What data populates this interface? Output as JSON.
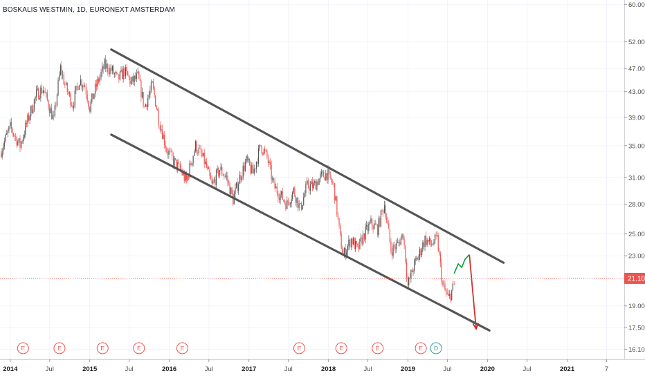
{
  "header": {
    "title": "BOSKALIS WESTMIN, 1D, EURONEXT AMSTERDAM"
  },
  "colors": {
    "up": "#26a69a",
    "down": "#ef5350",
    "candle": "#555555",
    "channel": "#555555",
    "projection_up": "#0a9c3a",
    "projection_down": "#d32f2f",
    "price_line": "#ef5350",
    "grid": "#f0f3fa"
  },
  "chart_data": {
    "type": "line",
    "title": "BOSKALIS WESTMIN, 1D, EURONEXT AMSTERDAM",
    "xlabel": "",
    "ylabel": "",
    "y_scale": "log",
    "ylim": [
      15.5,
      61.0
    ],
    "xlim": [
      "2013-11-15",
      "2021-09-20"
    ],
    "grid": true,
    "current_price": {
      "value": 21.1,
      "label": "21.10"
    },
    "y_ticks": [
      {
        "value": 60.0,
        "label": "60.00"
      },
      {
        "value": 52.0,
        "label": "52.00"
      },
      {
        "value": 47.0,
        "label": "47.00"
      },
      {
        "value": 43.0,
        "label": "43.00"
      },
      {
        "value": 39.0,
        "label": "39.00"
      },
      {
        "value": 35.0,
        "label": "35.00"
      },
      {
        "value": 31.0,
        "label": "31.00"
      },
      {
        "value": 28.0,
        "label": "28.00"
      },
      {
        "value": 25.0,
        "label": "25.00"
      },
      {
        "value": 23.0,
        "label": "23.00"
      },
      {
        "value": 19.0,
        "label": "19.00"
      },
      {
        "value": 17.5,
        "label": "17.50"
      },
      {
        "value": 16.1,
        "label": "16.10"
      }
    ],
    "x_ticks": [
      {
        "date": "2014-01-01",
        "label": "2014",
        "year": true
      },
      {
        "date": "2014-07-01",
        "label": "Jul",
        "year": false
      },
      {
        "date": "2015-01-01",
        "label": "2015",
        "year": true
      },
      {
        "date": "2015-07-01",
        "label": "Jul",
        "year": false
      },
      {
        "date": "2016-01-01",
        "label": "2016",
        "year": true
      },
      {
        "date": "2016-07-01",
        "label": "Jul",
        "year": false
      },
      {
        "date": "2017-01-01",
        "label": "2017",
        "year": true
      },
      {
        "date": "2017-07-01",
        "label": "Jul",
        "year": false
      },
      {
        "date": "2018-01-01",
        "label": "2018",
        "year": true
      },
      {
        "date": "2018-07-01",
        "label": "Jul",
        "year": false
      },
      {
        "date": "2019-01-01",
        "label": "2019",
        "year": true
      },
      {
        "date": "2019-07-01",
        "label": "Jul",
        "year": false
      },
      {
        "date": "2020-01-01",
        "label": "2020",
        "year": true
      },
      {
        "date": "2020-07-01",
        "label": "Jul",
        "year": false
      },
      {
        "date": "2021-01-01",
        "label": "2021",
        "year": true
      },
      {
        "date": "2021-07-01",
        "label": "7",
        "year": false
      }
    ],
    "series": [
      {
        "type": "candlestick",
        "x": [
          "2013-11-15",
          "2014-01-01",
          "2014-02-15",
          "2014-04-01",
          "2014-05-01",
          "2014-06-01",
          "2014-06-25",
          "2014-07-20",
          "2014-08-20",
          "2014-09-15",
          "2014-10-15",
          "2014-11-15",
          "2014-12-10",
          "2015-01-01",
          "2015-02-01",
          "2015-03-10",
          "2015-04-15",
          "2015-05-10",
          "2015-06-10",
          "2015-07-10",
          "2015-08-10",
          "2015-09-10",
          "2015-10-15",
          "2015-11-20",
          "2015-12-20",
          "2016-01-20",
          "2016-02-20",
          "2016-03-20",
          "2016-05-01",
          "2016-06-10",
          "2016-07-15",
          "2016-08-20",
          "2016-09-20",
          "2016-10-20",
          "2016-11-20",
          "2016-12-20",
          "2017-01-20",
          "2017-02-25",
          "2017-03-25",
          "2017-04-25",
          "2017-05-25",
          "2017-06-25",
          "2017-07-25",
          "2017-08-25",
          "2017-09-25",
          "2017-10-25",
          "2017-11-25",
          "2017-12-25",
          "2018-01-25",
          "2018-02-25",
          "2018-03-10",
          "2018-04-15",
          "2018-05-15",
          "2018-06-15",
          "2018-07-15",
          "2018-08-15",
          "2018-09-15",
          "2018-10-15",
          "2018-11-15",
          "2018-12-10",
          "2019-01-01",
          "2019-01-25",
          "2019-02-20",
          "2019-03-20",
          "2019-04-15",
          "2019-05-15",
          "2019-06-10",
          "2019-07-05",
          "2019-08-01"
        ],
        "values": [
          34.0,
          37.5,
          35.0,
          39.5,
          42.5,
          43.5,
          41.0,
          38.5,
          47.0,
          43.5,
          41.0,
          45.0,
          44.0,
          40.5,
          44.0,
          47.5,
          46.5,
          45.0,
          46.5,
          44.5,
          45.5,
          40.5,
          44.0,
          38.0,
          34.5,
          33.0,
          32.0,
          30.5,
          35.0,
          33.0,
          30.0,
          32.0,
          31.0,
          28.5,
          31.0,
          33.0,
          31.5,
          35.0,
          33.5,
          30.0,
          29.0,
          28.0,
          29.5,
          27.5,
          30.0,
          30.0,
          31.0,
          31.5,
          30.0,
          24.5,
          23.0,
          24.5,
          23.5,
          25.0,
          26.0,
          25.5,
          28.0,
          23.5,
          24.0,
          25.0,
          20.5,
          22.0,
          23.0,
          24.5,
          24.0,
          24.5,
          20.5,
          19.5,
          20.5
        ]
      },
      {
        "name": "",
        "type": "projection",
        "x": [
          "2019-08-01",
          "2019-08-20",
          "2019-09-05",
          "2019-09-20",
          "2019-10-10"
        ],
        "values": [
          21.5,
          22.3,
          22.0,
          22.7,
          23.1
        ]
      },
      {
        "name": "",
        "type": "projection-drop",
        "x": [
          "2019-10-10",
          "2019-11-10"
        ],
        "values": [
          23.1,
          17.4
        ]
      },
      {
        "name": "",
        "type": "channel-upper",
        "x": [
          "2015-04-10",
          "2020-03-15"
        ],
        "values": [
          50.5,
          22.4
        ]
      },
      {
        "name": "",
        "type": "channel-lower",
        "x": [
          "2015-04-10",
          "2020-01-10"
        ],
        "values": [
          36.5,
          17.3
        ]
      }
    ],
    "events": [
      {
        "date": "2014-03-01",
        "label": "E",
        "kind": "earnings"
      },
      {
        "date": "2014-08-15",
        "label": "E",
        "kind": "earnings"
      },
      {
        "date": "2015-03-01",
        "label": "E",
        "kind": "earnings"
      },
      {
        "date": "2015-08-15",
        "label": "E",
        "kind": "earnings"
      },
      {
        "date": "2016-03-01",
        "label": "E",
        "kind": "earnings"
      },
      {
        "date": "2017-08-20",
        "label": "E",
        "kind": "earnings"
      },
      {
        "date": "2018-03-01",
        "label": "E",
        "kind": "earnings"
      },
      {
        "date": "2018-08-15",
        "label": "E",
        "kind": "earnings"
      },
      {
        "date": "2019-03-01",
        "label": "E",
        "kind": "earnings"
      },
      {
        "date": "2019-05-10",
        "label": "D",
        "kind": "dividend"
      }
    ]
  }
}
